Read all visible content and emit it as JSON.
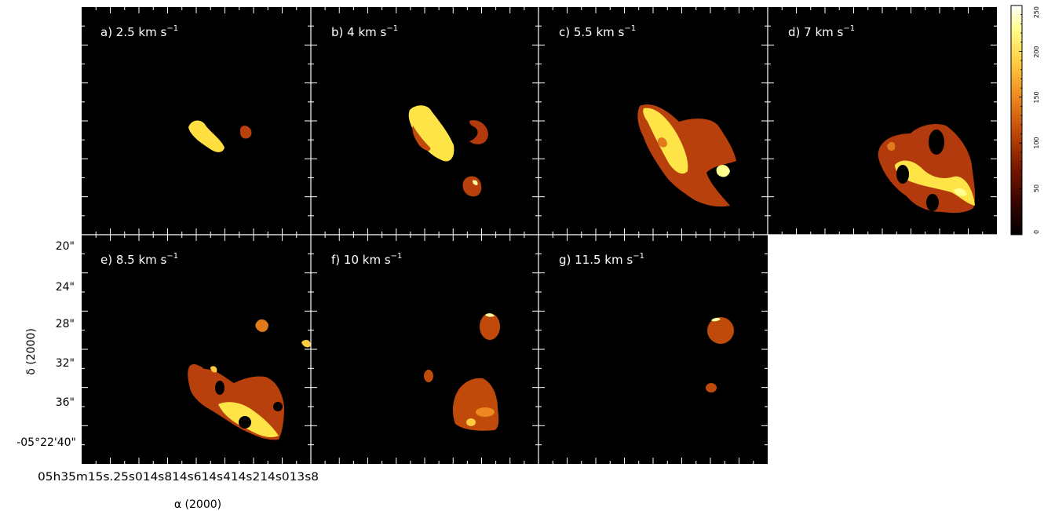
{
  "panels": [
    {
      "id": "a",
      "label": "a) 2.5 km s",
      "sup": "−1"
    },
    {
      "id": "b",
      "label": "b) 4 km s",
      "sup": "−1"
    },
    {
      "id": "c",
      "label": "c) 5.5 km s",
      "sup": "−1"
    },
    {
      "id": "d",
      "label": "d) 7 km s",
      "sup": "−1"
    },
    {
      "id": "e",
      "label": "e) 8.5 km s",
      "sup": "−1"
    },
    {
      "id": "f",
      "label": "f) 10 km s",
      "sup": "−1"
    },
    {
      "id": "g",
      "label": "g) 11.5 km s",
      "sup": "−1"
    }
  ],
  "axes": {
    "ylabel": "δ (2000)",
    "xlabel": "α (2000)",
    "y_ticks": [
      "20\"",
      "24\"",
      "28\"",
      "32\"",
      "36\"",
      "-05°22'40\""
    ],
    "x_ticks": [
      "05h35m15.2s",
      "15.0s",
      "14.8s",
      "14.6s",
      "14.4s",
      "14.2s",
      "14.0s",
      "13.8s"
    ],
    "x_tick_text": "05h35m15s.25s014s814s614s414s214s013s8"
  },
  "colorbar": {
    "ticks": [
      "250",
      "200",
      "150",
      "100",
      "50",
      "0"
    ],
    "range": [
      0,
      250
    ],
    "colormap": [
      "#000000",
      "#3a0500",
      "#7a1a00",
      "#c04a0a",
      "#ee8820",
      "#ffcc40",
      "#ffff90",
      "#ffffff"
    ]
  },
  "colors": {
    "background": "#000000",
    "low": "#b23a0c",
    "mid": "#e07a1c",
    "high": "#ffe066",
    "peak": "#ffffa8"
  }
}
